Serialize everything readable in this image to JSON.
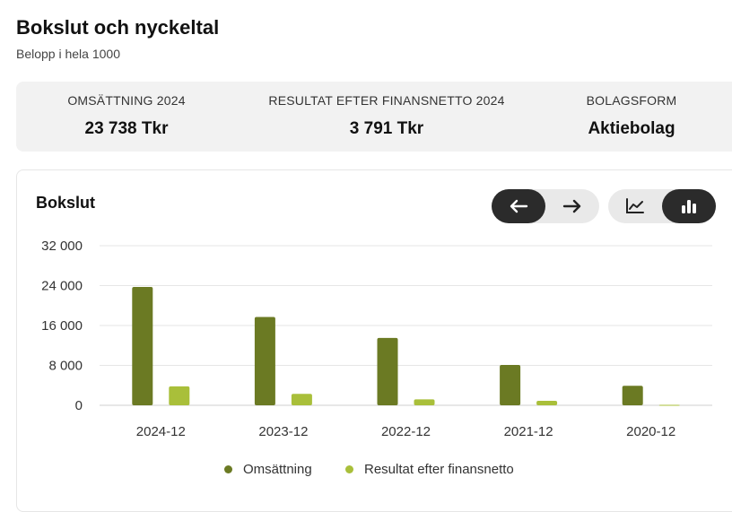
{
  "header": {
    "title": "Bokslut och nyckeltal",
    "subtitle": "Belopp i hela 1000"
  },
  "kpis": [
    {
      "label": "OMSÄTTNING 2024",
      "value": "23 738 Tkr"
    },
    {
      "label": "RESULTAT EFTER FINANSNETTO 2024",
      "value": "3 791 Tkr"
    },
    {
      "label": "BOLAGSFORM",
      "value": "Aktiebolag"
    }
  ],
  "card": {
    "title": "Bokslut",
    "nav_icons": [
      "arrow-left-icon",
      "arrow-right-icon"
    ],
    "view_icons": [
      "line-chart-icon",
      "bar-chart-icon"
    ],
    "active_view": "bar-chart-icon"
  },
  "colors": {
    "omsattning": "#6b7a23",
    "resultat": "#a9bf3a",
    "active_button": "#2b2b2b"
  },
  "chart_data": {
    "type": "bar",
    "categories": [
      "2024-12",
      "2023-12",
      "2022-12",
      "2021-12",
      "2020-12"
    ],
    "series": [
      {
        "name": "Omsättning",
        "values": [
          23738,
          17700,
          13500,
          8100,
          3900
        ]
      },
      {
        "name": "Resultat efter finansnetto",
        "values": [
          3791,
          2300,
          1200,
          900,
          80
        ]
      }
    ],
    "yticks": [
      "32 000",
      "24 000",
      "16 000",
      "8 000",
      "0"
    ],
    "ytick_values": [
      32000,
      24000,
      16000,
      8000,
      0
    ],
    "ylim": [
      0,
      32000
    ],
    "grid": true,
    "legend": "bottom"
  }
}
